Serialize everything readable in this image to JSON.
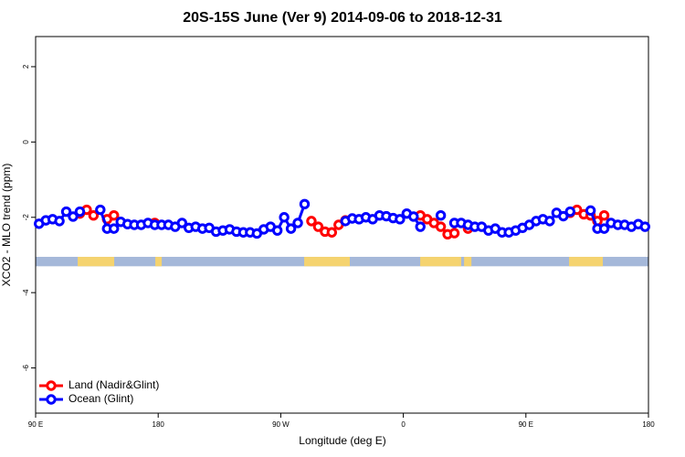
{
  "chart_data": {
    "type": "line",
    "title": "20S-15S June (Ver 9)   2014-09-06 to 2018-12-31",
    "xlabel": "Longitude (deg E)",
    "ylabel": "XCO2 - MLO trend (ppm)",
    "xlim": [
      90,
      540
    ],
    "ylim": [
      -7.2,
      2.8
    ],
    "xticks": [
      {
        "value": 90,
        "label": "90 E"
      },
      {
        "value": 180,
        "label": "180"
      },
      {
        "value": 270,
        "label": "90 W"
      },
      {
        "value": 360,
        "label": "0"
      },
      {
        "value": 450,
        "label": "90 E"
      },
      {
        "value": 540,
        "label": "180"
      }
    ],
    "yticks": [
      2,
      0,
      -2,
      -4,
      -6
    ],
    "legend": "bottomleft",
    "surface_band": {
      "ylim": [
        -3.3,
        -3.05
      ],
      "ocean_color": "#a5b8d9",
      "land_color": "#f5d36f",
      "land": [
        [
          120.9,
          147.7
        ],
        [
          177.9,
          182.6
        ],
        [
          287.2,
          320.7
        ],
        [
          372.4,
          402.5
        ],
        [
          404.6,
          410
        ],
        [
          481.7,
          506.5
        ]
      ]
    },
    "x": [
      92.5,
      97.5,
      102.5,
      107.5,
      112.5,
      117.5,
      122.5,
      127.5,
      132.5,
      137.5,
      142.5,
      147.5,
      152.5,
      157.5,
      162.5,
      167.5,
      172.5,
      177.5,
      182.5,
      187.5,
      192.5,
      197.5,
      202.5,
      207.5,
      212.5,
      217.5,
      222.5,
      227.5,
      232.5,
      237.5,
      242.5,
      247.5,
      252.5,
      257.5,
      262.5,
      267.5,
      272.5,
      277.5,
      282.5,
      287.5,
      292.5,
      297.5,
      302.5,
      307.5,
      312.5,
      317.5,
      322.5,
      327.5,
      332.5,
      337.5,
      342.5,
      347.5,
      352.5,
      357.5,
      362.5,
      367.5,
      372.5,
      377.5,
      382.5,
      387.5,
      392.5,
      397.5,
      402.5,
      407.5,
      412.5,
      417.5,
      422.5,
      427.5,
      432.5,
      437.5,
      442.5,
      447.5,
      452.5,
      457.5,
      462.5,
      467.5,
      472.5,
      477.5,
      482.5,
      487.5,
      492.5,
      497.5,
      502.5,
      507.5,
      512.5,
      517.5,
      522.5,
      527.5,
      532.5,
      537.5
    ],
    "series": [
      {
        "name": "Land (Nadir&Glint)",
        "color": "#ff0000",
        "values": [
          null,
          null,
          null,
          null,
          null,
          null,
          -1.9,
          -1.8,
          -1.95,
          null,
          -2.05,
          -1.95,
          null,
          null,
          null,
          null,
          null,
          -2.15,
          null,
          null,
          null,
          null,
          null,
          null,
          null,
          null,
          null,
          null,
          null,
          null,
          null,
          null,
          null,
          null,
          null,
          null,
          null,
          null,
          null,
          null,
          -2.1,
          -2.25,
          -2.38,
          -2.4,
          -2.2,
          -2.08,
          null,
          null,
          null,
          null,
          null,
          null,
          null,
          null,
          null,
          null,
          -1.95,
          -2.05,
          -2.15,
          -2.25,
          -2.45,
          -2.42,
          null,
          -2.3,
          null,
          null,
          null,
          null,
          null,
          null,
          null,
          null,
          null,
          null,
          null,
          null,
          null,
          null,
          -1.88,
          -1.8,
          -1.92,
          -1.95,
          -2.1,
          -1.95,
          null,
          null,
          null,
          null,
          null,
          null
        ]
      },
      {
        "name": "Ocean (Glint)",
        "color": "#0000ff",
        "values": [
          -2.17,
          -2.08,
          -2.05,
          -2.1,
          -1.85,
          -1.98,
          -1.85,
          null,
          null,
          -1.8,
          -2.3,
          -2.3,
          -2.12,
          -2.18,
          -2.2,
          -2.2,
          -2.15,
          -2.2,
          -2.2,
          -2.2,
          -2.25,
          -2.15,
          -2.28,
          -2.25,
          -2.3,
          -2.28,
          -2.38,
          -2.35,
          -2.32,
          -2.38,
          -2.4,
          -2.4,
          -2.43,
          -2.32,
          -2.25,
          -2.35,
          -2.0,
          -2.3,
          -2.15,
          -1.65,
          null,
          null,
          null,
          null,
          null,
          -2.1,
          -2.03,
          -2.05,
          -2.0,
          -2.05,
          -1.95,
          -1.97,
          -2.02,
          -2.05,
          -1.9,
          -1.98,
          -2.25,
          null,
          null,
          -1.95,
          null,
          -2.15,
          -2.15,
          -2.2,
          -2.25,
          -2.25,
          -2.35,
          -2.3,
          -2.4,
          -2.4,
          -2.35,
          -2.28,
          -2.2,
          -2.1,
          -2.05,
          -2.1,
          -1.88,
          -1.97,
          -1.85,
          null,
          null,
          -1.82,
          -2.3,
          -2.3,
          -2.15,
          -2.2,
          -2.2,
          -2.25,
          -2.18,
          -2.25
        ]
      }
    ]
  }
}
